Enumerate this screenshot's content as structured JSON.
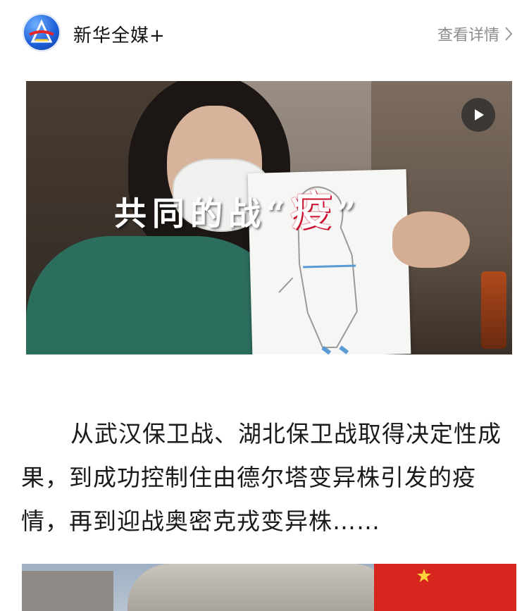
{
  "header": {
    "brand_name": "新华全媒+",
    "detail_link": "查看详情",
    "logo_icon": "xinhua-logo-icon",
    "chevron_icon": "chevron-right-icon"
  },
  "video": {
    "overlay_prefix": "共同的战",
    "overlay_quote_open": "“",
    "overlay_highlight": "疫",
    "overlay_quote_close": "”",
    "play_icon": "play-icon"
  },
  "article": {
    "paragraph": "从武汉保卫战、湖北保卫战取得决定性成果，到成功控制住由德尔塔变异株引发的疫情，再到迎战奥密克戎变异株……"
  },
  "colors": {
    "brand_blue": "#1e5fd8",
    "accent_red": "#c8102e",
    "muted_gray": "#8c8c8c"
  }
}
